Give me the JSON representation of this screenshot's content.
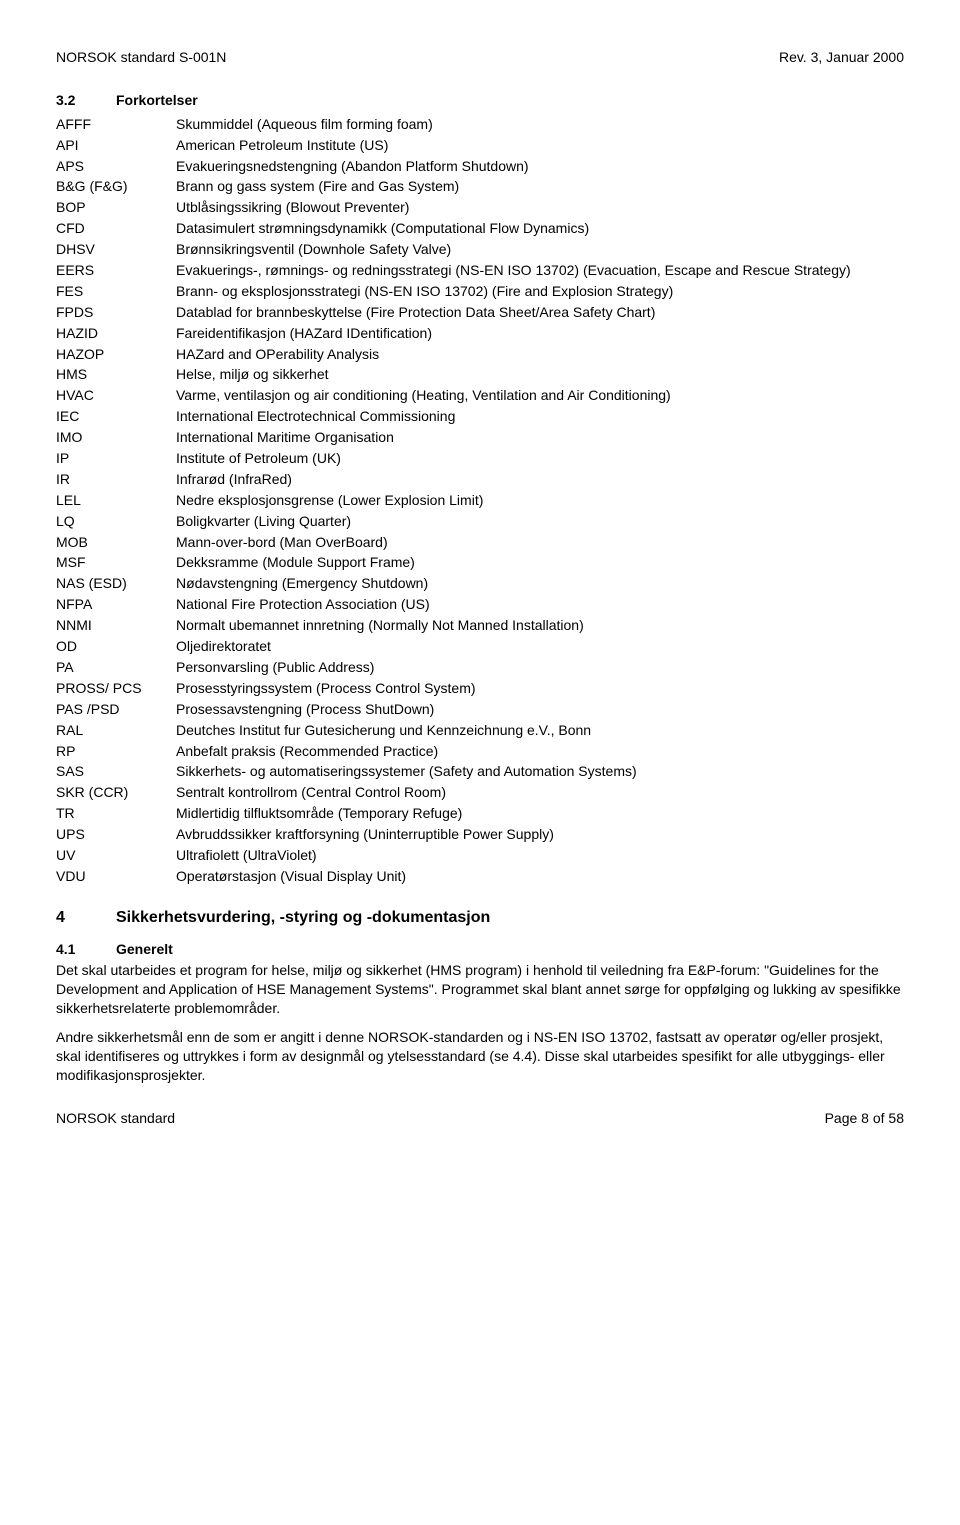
{
  "header": {
    "left": "NORSOK standard S-001N",
    "right": "Rev. 3, Januar 2000"
  },
  "section32": {
    "num": "3.2",
    "title": "Forkortelser"
  },
  "abbr": [
    {
      "k": "AFFF",
      "v": "Skummiddel (Aqueous film forming foam)"
    },
    {
      "k": "API",
      "v": "American Petroleum Institute (US)"
    },
    {
      "k": "APS",
      "v": "Evakueringsnedstengning (Abandon Platform Shutdown)"
    },
    {
      "k": "B&G (F&G)",
      "v": "Brann og gass system (Fire and Gas System)"
    },
    {
      "k": "BOP",
      "v": "Utblåsingssikring (Blowout Preventer)"
    },
    {
      "k": "CFD",
      "v": "Datasimulert strømningsdynamikk (Computational Flow Dynamics)"
    },
    {
      "k": "DHSV",
      "v": "Brønnsikringsventil (Downhole Safety Valve)"
    },
    {
      "k": "EERS",
      "v": "Evakuerings-, rømnings- og redningsstrategi (NS-EN ISO 13702) (Evacuation, Escape and Rescue Strategy)"
    },
    {
      "k": "FES",
      "v": "Brann- og eksplosjonsstrategi (NS-EN ISO 13702) (Fire and Explosion Strategy)"
    },
    {
      "k": "FPDS",
      "v": "Datablad for brannbeskyttelse (Fire Protection Data Sheet/Area Safety Chart)"
    },
    {
      "k": "HAZID",
      "v": "Fareidentifikasjon (HAZard IDentification)"
    },
    {
      "k": "HAZOP",
      "v": "HAZard and OPerability Analysis"
    },
    {
      "k": "HMS",
      "v": "Helse, miljø og sikkerhet"
    },
    {
      "k": "HVAC",
      "v": "Varme, ventilasjon og air conditioning (Heating, Ventilation and Air Conditioning)"
    },
    {
      "k": "IEC",
      "v": "International Electrotechnical Commissioning"
    },
    {
      "k": "IMO",
      "v": "International Maritime Organisation"
    },
    {
      "k": "IP",
      "v": "Institute of Petroleum (UK)"
    },
    {
      "k": "IR",
      "v": "Infrarød (InfraRed)"
    },
    {
      "k": "LEL",
      "v": "Nedre eksplosjonsgrense (Lower Explosion Limit)"
    },
    {
      "k": "LQ",
      "v": "Boligkvarter (Living Quarter)"
    },
    {
      "k": "MOB",
      "v": "Mann-over-bord (Man OverBoard)"
    },
    {
      "k": "MSF",
      "v": "Dekksramme (Module Support Frame)"
    },
    {
      "k": "NAS (ESD)",
      "v": "Nødavstengning (Emergency Shutdown)"
    },
    {
      "k": "NFPA",
      "v": "National Fire Protection Association (US)"
    },
    {
      "k": "NNMI",
      "v": "Normalt ubemannet innretning (Normally Not Manned Installation)"
    },
    {
      "k": "OD",
      "v": "Oljedirektoratet"
    },
    {
      "k": "PA",
      "v": "Personvarsling (Public Address)"
    },
    {
      "k": "PROSS/ PCS",
      "v": "Prosesstyringssystem (Process Control System)"
    },
    {
      "k": "PAS /PSD",
      "v": "Prosessavstengning (Process ShutDown)"
    },
    {
      "k": "RAL",
      "v": "Deutches Institut fur Gutesicherung und Kennzeichnung e.V., Bonn"
    },
    {
      "k": "RP",
      "v": "Anbefalt praksis (Recommended Practice)"
    },
    {
      "k": "SAS",
      "v": "Sikkerhets- og automatiseringssystemer (Safety and Automation Systems)"
    },
    {
      "k": "SKR (CCR)",
      "v": "Sentralt kontrollrom (Central Control Room)"
    },
    {
      "k": "TR",
      "v": "Midlertidig tilfluktsområde (Temporary Refuge)"
    },
    {
      "k": "UPS",
      "v": "Avbruddssikker kraftforsyning (Uninterruptible Power Supply)"
    },
    {
      "k": "UV",
      "v": "Ultrafiolett (UltraViolet)"
    },
    {
      "k": "VDU",
      "v": "Operatørstasjon (Visual Display Unit)"
    }
  ],
  "section4": {
    "num": "4",
    "title": "Sikkerhetsvurdering, -styring og -dokumentasjon"
  },
  "section41": {
    "num": "4.1",
    "title": "Generelt",
    "p1": "Det skal utarbeides et program for helse, miljø og sikkerhet (HMS program) i henhold til veiledning fra E&P-forum: \"Guidelines for the Development and Application of HSE Management Systems\". Programmet skal blant annet sørge for oppfølging og lukking av spesifikke sikkerhetsrelaterte problemområder.",
    "p2": "Andre sikkerhetsmål enn de som er angitt i denne NORSOK-standarden og i NS-EN ISO 13702, fastsatt av operatør og/eller prosjekt, skal identifiseres og uttrykkes i form av designmål og ytelsesstandard (se 4.4). Disse skal utarbeides spesifikt for alle utbyggings- eller modifikasjonsprosjekter."
  },
  "footer": {
    "left": "NORSOK standard",
    "right": "Page 8 of 58"
  }
}
